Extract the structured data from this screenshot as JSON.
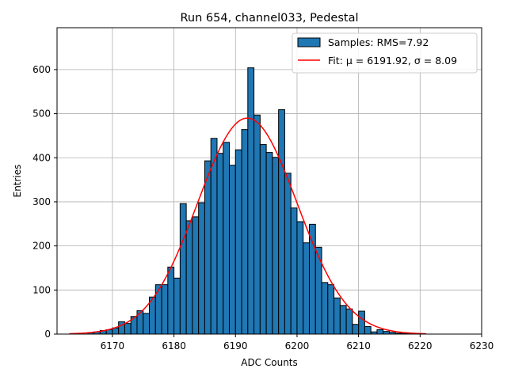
{
  "chart_data": {
    "type": "bar",
    "title": "Run 654, channel033, Pedestal",
    "xlabel": "ADC Counts",
    "ylabel": "Entries",
    "xlim": [
      6161,
      6230
    ],
    "ylim": [
      0,
      695
    ],
    "xticks": [
      6170,
      6180,
      6190,
      6200,
      6210,
      6220,
      6230
    ],
    "yticks": [
      0,
      100,
      200,
      300,
      400,
      500,
      600
    ],
    "grid": true,
    "legend_position": "top-right",
    "bar_color": "#1f77b4",
    "fit_color": "#ff0000",
    "bin_width": 1,
    "bins": [
      6166,
      6167,
      6168,
      6169,
      6170,
      6171,
      6172,
      6173,
      6174,
      6175,
      6176,
      6177,
      6178,
      6179,
      6180,
      6181,
      6182,
      6183,
      6184,
      6185,
      6186,
      6187,
      6188,
      6189,
      6190,
      6191,
      6192,
      6193,
      6194,
      6195,
      6196,
      6197,
      6198,
      6199,
      6200,
      6201,
      6202,
      6203,
      6204,
      6205,
      6206,
      6207,
      6208,
      6209,
      6210,
      6211,
      6212,
      6213,
      6214,
      6215,
      6216,
      6217,
      6218
    ],
    "values": [
      3,
      5,
      8,
      10,
      14,
      28,
      24,
      40,
      53,
      47,
      84,
      112,
      112,
      152,
      127,
      296,
      257,
      266,
      298,
      393,
      444,
      410,
      435,
      383,
      418,
      464,
      604,
      497,
      430,
      412,
      401,
      509,
      365,
      286,
      255,
      207,
      249,
      197,
      117,
      112,
      82,
      65,
      57,
      22,
      52,
      17,
      5,
      10,
      6,
      4,
      2,
      1,
      1
    ],
    "series": [
      {
        "name": "Samples: RMS=7.92",
        "type": "bar"
      },
      {
        "name": "Fit: μ = 6191.92, σ = 8.09",
        "type": "line",
        "model": "gaussian",
        "mu": 6191.92,
        "sigma": 8.09,
        "amplitude": 490,
        "x_range": [
          6163,
          6221
        ]
      }
    ]
  }
}
